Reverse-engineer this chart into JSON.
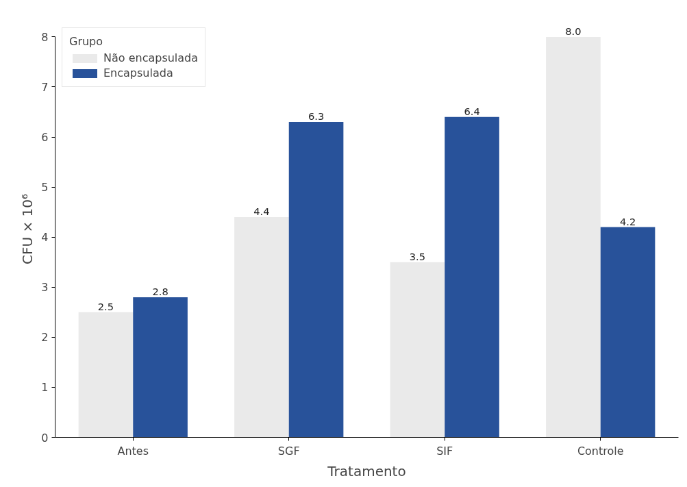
{
  "chart_data": {
    "type": "bar",
    "xlabel": "Tratamento",
    "ylabel": "CFU × 10⁶",
    "legend_title": "Grupo",
    "categories": [
      "Antes",
      "SGF",
      "SIF",
      "Controle"
    ],
    "series": [
      {
        "name": "Não encapsulada",
        "color": "#eaeaea",
        "values": [
          2.5,
          4.4,
          3.5,
          8.0
        ],
        "value_labels": [
          "2.5",
          "4.4",
          "3.5",
          "8.0"
        ]
      },
      {
        "name": "Encapsulada",
        "color": "#28529a",
        "values": [
          2.8,
          6.3,
          6.4,
          4.2
        ],
        "value_labels": [
          "2.8",
          "6.3",
          "6.4",
          "4.2"
        ]
      }
    ],
    "ylim": [
      0,
      8
    ],
    "yticks": [
      0,
      1,
      2,
      3,
      4,
      5,
      6,
      7,
      8
    ],
    "grid": false,
    "legend": "top left"
  }
}
